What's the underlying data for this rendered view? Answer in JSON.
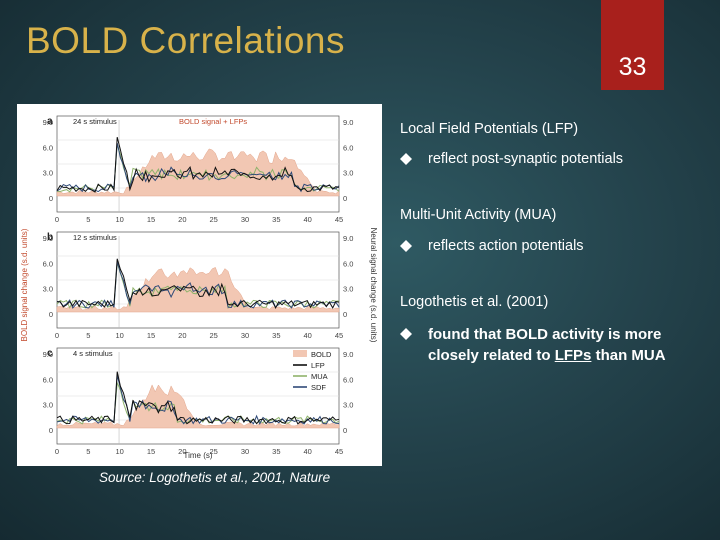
{
  "slide": {
    "title": "BOLD Correlations",
    "page_number": "33",
    "accent_color": "#a8201c",
    "title_color": "#d8b24a"
  },
  "figure": {
    "panels": [
      {
        "letter": "a",
        "stimulus": "24 s stimulus",
        "header": "BOLD signal + LFPs"
      },
      {
        "letter": "b",
        "stimulus": "12 s stimulus"
      },
      {
        "letter": "c",
        "stimulus": "4 s stimulus"
      }
    ],
    "left_axis_label": "BOLD signal change (s.d. units)",
    "right_axis_label": "Neural signal change (s.d. units)",
    "x_axis_label": "Time (s)",
    "x_ticks": [
      "0",
      "5",
      "10",
      "15",
      "20",
      "25",
      "30",
      "35",
      "40",
      "45"
    ],
    "left_ticks": [
      "9.0",
      "6.0",
      "3.0",
      "0"
    ],
    "right_ticks": [
      "9.0",
      "6.0",
      "3.0",
      "0"
    ],
    "legend": [
      {
        "label": "BOLD",
        "color": "#f2c7b3"
      },
      {
        "label": "LFP",
        "color": "#111111"
      },
      {
        "label": "MUA",
        "color": "#8fb36b"
      },
      {
        "label": "SDF",
        "color": "#2f4a78"
      }
    ]
  },
  "caption": "Source: Logothetis et al., 2001, Nature",
  "content": {
    "lfp_heading": "Local Field Potentials (LFP)",
    "lfp_bullet": "reflect post-synaptic potentials",
    "mua_heading": "Multi-Unit Activity (MUA)",
    "mua_bullet": "reflects action potentials",
    "paper_heading": "Logothetis et al. (2001)",
    "finding_line1": "found that BOLD activity is more",
    "finding_line2_prefix": "closely related to ",
    "finding_line2_underlined": "LFPs",
    "finding_line2_suffix": " than MUA"
  }
}
